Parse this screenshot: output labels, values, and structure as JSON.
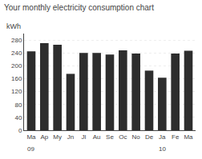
{
  "chart_data": {
    "type": "bar",
    "title": "Your monthly electricity consumption chart",
    "ylabel": "kWh",
    "categories": [
      "Ma",
      "Ap",
      "My",
      "Jn",
      "Jl",
      "Au",
      "Se",
      "Oc",
      "No",
      "De",
      "Ja",
      "Fe",
      "Ma"
    ],
    "values": [
      245,
      270,
      265,
      175,
      240,
      240,
      235,
      248,
      238,
      185,
      163,
      238,
      247
    ],
    "color": "#2d2d2d",
    "ylim": [
      0,
      300
    ],
    "yticks": [
      0,
      40,
      80,
      120,
      160,
      200,
      240,
      280
    ],
    "grid": true,
    "annotations": [
      {
        "x": 0,
        "text": "09"
      },
      {
        "x": 10,
        "text": "10"
      }
    ]
  }
}
